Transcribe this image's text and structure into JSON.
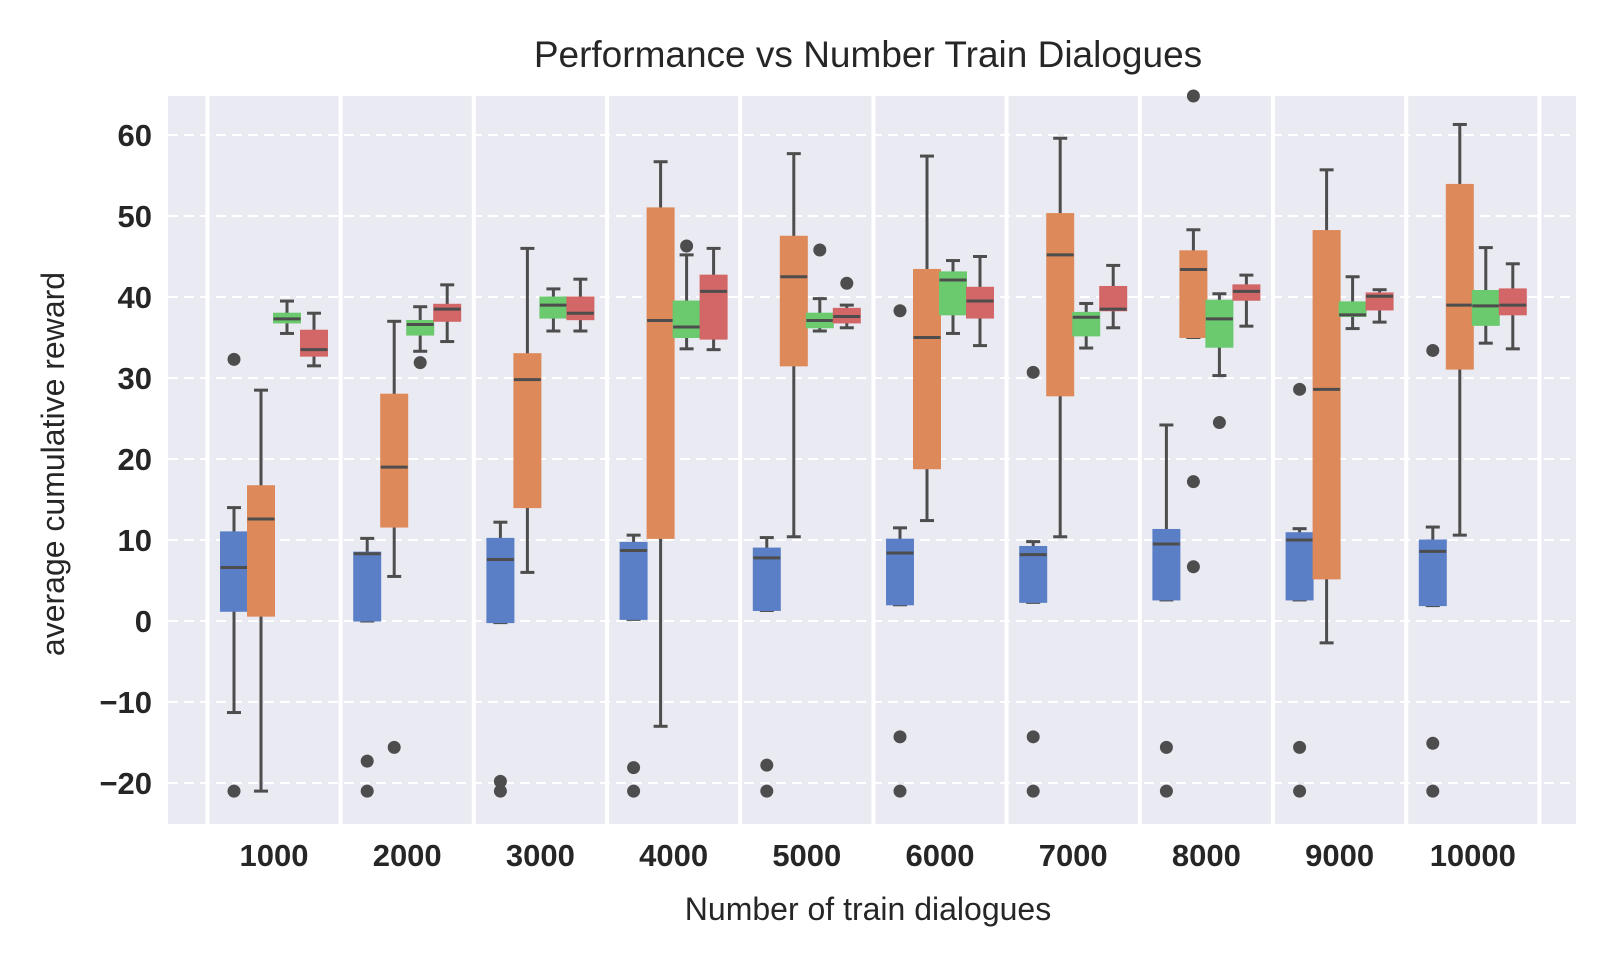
{
  "chart_data": {
    "type": "box",
    "title": "Performance vs Number Train Dialogues",
    "xlabel": "Number of train dialogues",
    "ylabel": "average cumulative reward",
    "categories": [
      "1000",
      "2000",
      "3000",
      "4000",
      "5000",
      "6000",
      "7000",
      "8000",
      "9000",
      "10000"
    ],
    "ylim": [
      -25,
      65
    ],
    "yticks": [
      -20,
      -10,
      0,
      10,
      20,
      30,
      40,
      50,
      60
    ],
    "ytick_labels": [
      "−20",
      "−10",
      "0",
      "10",
      "20",
      "30",
      "40",
      "50",
      "60"
    ],
    "grid": true,
    "colors": [
      "#5a7fc6",
      "#de8959",
      "#6bc96e",
      "#d36767"
    ],
    "boxes": [
      [
        {
          "q1": 1.2,
          "median": 6.6,
          "q3": 11.0,
          "whislo": -11.3,
          "whishi": 14.0,
          "fliers": [
            32.3,
            -21.0
          ]
        },
        {
          "q1": 0.6,
          "median": 12.6,
          "q3": 16.7,
          "whislo": -21.0,
          "whishi": 28.5,
          "fliers": []
        },
        {
          "q1": 36.8,
          "median": 37.3,
          "q3": 38.0,
          "whislo": 35.5,
          "whishi": 39.5,
          "fliers": []
        },
        {
          "q1": 32.7,
          "median": 33.5,
          "q3": 35.9,
          "whislo": 31.5,
          "whishi": 38.0,
          "fliers": []
        }
      ],
      [
        {
          "q1": 0.0,
          "median": 8.3,
          "q3": 8.5,
          "whislo": 0.0,
          "whishi": 10.2,
          "fliers": [
            -17.3,
            -21.0
          ]
        },
        {
          "q1": 11.6,
          "median": 19.0,
          "q3": 28.0,
          "whislo": 5.5,
          "whishi": 37.0,
          "fliers": [
            -15.6
          ]
        },
        {
          "q1": 35.3,
          "median": 36.6,
          "q3": 37.1,
          "whislo": 33.3,
          "whishi": 38.8,
          "fliers": [
            31.9
          ]
        },
        {
          "q1": 37.0,
          "median": 38.5,
          "q3": 39.1,
          "whislo": 34.5,
          "whishi": 41.5,
          "fliers": []
        }
      ],
      [
        {
          "q1": -0.2,
          "median": 7.6,
          "q3": 10.2,
          "whislo": -0.2,
          "whishi": 12.2,
          "fliers": [
            -19.8,
            -21.0
          ]
        },
        {
          "q1": 14.0,
          "median": 29.8,
          "q3": 33.0,
          "whislo": 6.0,
          "whishi": 46.0,
          "fliers": []
        },
        {
          "q1": 37.4,
          "median": 39.0,
          "q3": 40.0,
          "whislo": 35.8,
          "whishi": 41.0,
          "fliers": []
        },
        {
          "q1": 37.2,
          "median": 38.0,
          "q3": 40.0,
          "whislo": 35.8,
          "whishi": 42.2,
          "fliers": []
        }
      ],
      [
        {
          "q1": 0.2,
          "median": 8.7,
          "q3": 9.7,
          "whislo": 0.2,
          "whishi": 10.6,
          "fliers": [
            -18.1,
            -21.0
          ]
        },
        {
          "q1": 10.2,
          "median": 37.1,
          "q3": 51.0,
          "whislo": -13.0,
          "whishi": 56.7,
          "fliers": []
        },
        {
          "q1": 35.0,
          "median": 36.3,
          "q3": 39.5,
          "whislo": 33.6,
          "whishi": 45.2,
          "fliers": [
            46.3
          ]
        },
        {
          "q1": 34.8,
          "median": 40.7,
          "q3": 42.7,
          "whislo": 33.5,
          "whishi": 46.0,
          "fliers": []
        }
      ],
      [
        {
          "q1": 1.3,
          "median": 7.8,
          "q3": 9.0,
          "whislo": 1.3,
          "whishi": 10.3,
          "fliers": [
            -17.8,
            -21.0
          ]
        },
        {
          "q1": 31.5,
          "median": 42.5,
          "q3": 47.5,
          "whislo": 10.4,
          "whishi": 57.7,
          "fliers": []
        },
        {
          "q1": 36.2,
          "median": 37.1,
          "q3": 38.0,
          "whislo": 35.8,
          "whishi": 39.8,
          "fliers": [
            45.8
          ]
        },
        {
          "q1": 36.8,
          "median": 37.6,
          "q3": 38.6,
          "whislo": 36.2,
          "whishi": 39.0,
          "fliers": [
            41.7
          ]
        }
      ],
      [
        {
          "q1": 2.0,
          "median": 8.4,
          "q3": 10.1,
          "whislo": 2.0,
          "whishi": 11.5,
          "fliers": [
            -14.3,
            -21.0,
            38.3
          ]
        },
        {
          "q1": 18.8,
          "median": 35.0,
          "q3": 43.4,
          "whislo": 12.4,
          "whishi": 57.4,
          "fliers": []
        },
        {
          "q1": 37.8,
          "median": 42.1,
          "q3": 43.1,
          "whislo": 35.5,
          "whishi": 44.5,
          "fliers": []
        },
        {
          "q1": 37.4,
          "median": 39.5,
          "q3": 41.2,
          "whislo": 34.0,
          "whishi": 45.0,
          "fliers": []
        }
      ],
      [
        {
          "q1": 2.3,
          "median": 8.2,
          "q3": 9.2,
          "whislo": 2.3,
          "whishi": 9.8,
          "fliers": [
            30.7,
            -14.3,
            -21.0
          ]
        },
        {
          "q1": 27.8,
          "median": 45.2,
          "q3": 50.3,
          "whislo": 10.4,
          "whishi": 59.6,
          "fliers": []
        },
        {
          "q1": 35.2,
          "median": 37.5,
          "q3": 38.1,
          "whislo": 33.7,
          "whishi": 39.2,
          "fliers": []
        },
        {
          "q1": 38.3,
          "median": 38.5,
          "q3": 41.3,
          "whislo": 36.2,
          "whishi": 43.9,
          "fliers": []
        }
      ],
      [
        {
          "q1": 2.6,
          "median": 9.5,
          "q3": 11.3,
          "whislo": 2.6,
          "whishi": 24.2,
          "fliers": [
            -15.6,
            -21.0
          ]
        },
        {
          "q1": 35.0,
          "median": 43.4,
          "q3": 45.7,
          "whislo": 35.0,
          "whishi": 48.3,
          "fliers": [
            65.3,
            17.2,
            6.7
          ]
        },
        {
          "q1": 33.8,
          "median": 37.3,
          "q3": 39.6,
          "whislo": 30.3,
          "whishi": 40.4,
          "fliers": [
            24.5
          ]
        },
        {
          "q1": 39.6,
          "median": 40.7,
          "q3": 41.5,
          "whislo": 36.4,
          "whishi": 42.7,
          "fliers": []
        }
      ],
      [
        {
          "q1": 2.6,
          "median": 10.0,
          "q3": 10.9,
          "whislo": 2.6,
          "whishi": 11.4,
          "fliers": [
            28.6,
            -15.6,
            -21.0
          ]
        },
        {
          "q1": 5.2,
          "median": 28.6,
          "q3": 48.2,
          "whislo": -2.7,
          "whishi": 55.7,
          "fliers": []
        },
        {
          "q1": 37.6,
          "median": 37.8,
          "q3": 39.4,
          "whislo": 36.1,
          "whishi": 42.5,
          "fliers": []
        },
        {
          "q1": 38.4,
          "median": 40.1,
          "q3": 40.5,
          "whislo": 36.9,
          "whishi": 40.9,
          "fliers": []
        }
      ],
      [
        {
          "q1": 1.9,
          "median": 8.6,
          "q3": 10.0,
          "whislo": 1.9,
          "whishi": 11.6,
          "fliers": [
            33.4,
            -15.1,
            -21.0
          ]
        },
        {
          "q1": 31.1,
          "median": 39.0,
          "q3": 53.9,
          "whislo": 10.6,
          "whishi": 61.3,
          "fliers": []
        },
        {
          "q1": 36.5,
          "median": 38.9,
          "q3": 40.8,
          "whislo": 34.3,
          "whishi": 46.1,
          "fliers": []
        },
        {
          "q1": 37.8,
          "median": 39.0,
          "q3": 41.0,
          "whislo": 33.6,
          "whishi": 44.1,
          "fliers": []
        }
      ]
    ]
  }
}
